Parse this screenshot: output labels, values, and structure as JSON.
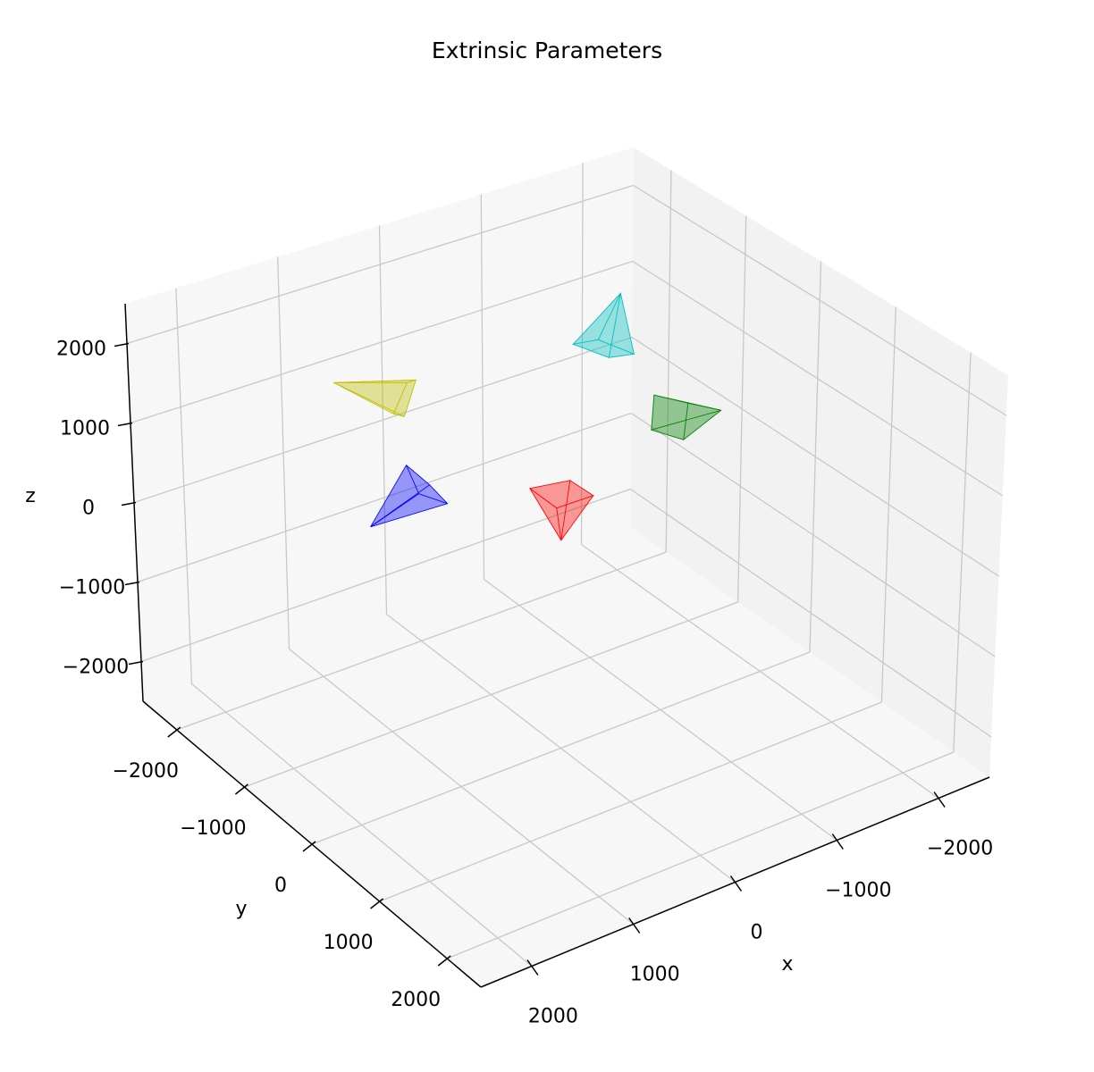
{
  "chart_data": {
    "type": "camera3d",
    "title": "Extrinsic Parameters",
    "xlabel": "x",
    "ylabel": "y",
    "zlabel": "z",
    "xlim": [
      -2500,
      2500
    ],
    "ylim": [
      -2500,
      2500
    ],
    "zlim": [
      -2500,
      2500
    ],
    "xticks": [
      {
        "value": -2000,
        "label": "−2000"
      },
      {
        "value": -1000,
        "label": "−1000"
      },
      0,
      1000,
      2000
    ],
    "yticks": [
      {
        "value": -2000,
        "label": "−2000"
      },
      {
        "value": -1000,
        "label": "−1000"
      },
      0,
      1000,
      2000
    ],
    "zticks": [
      {
        "value": -2000,
        "label": "−2000"
      },
      {
        "value": -1000,
        "label": "−1000"
      },
      0,
      1000,
      2000
    ],
    "grid": true,
    "cameras": [
      {
        "color": "#ff0000",
        "center": [
          0,
          0,
          500
        ]
      },
      {
        "color": "#0000ff",
        "center": [
          600,
          -1300,
          0
        ]
      },
      {
        "color": "#bfbf00",
        "center": [
          900,
          -1300,
          1500
        ]
      },
      {
        "color": "#00bfbf",
        "center": [
          -1300,
          -1200,
          1500
        ]
      },
      {
        "color": "#008000",
        "center": [
          -1300,
          -150,
          1000
        ]
      }
    ]
  }
}
